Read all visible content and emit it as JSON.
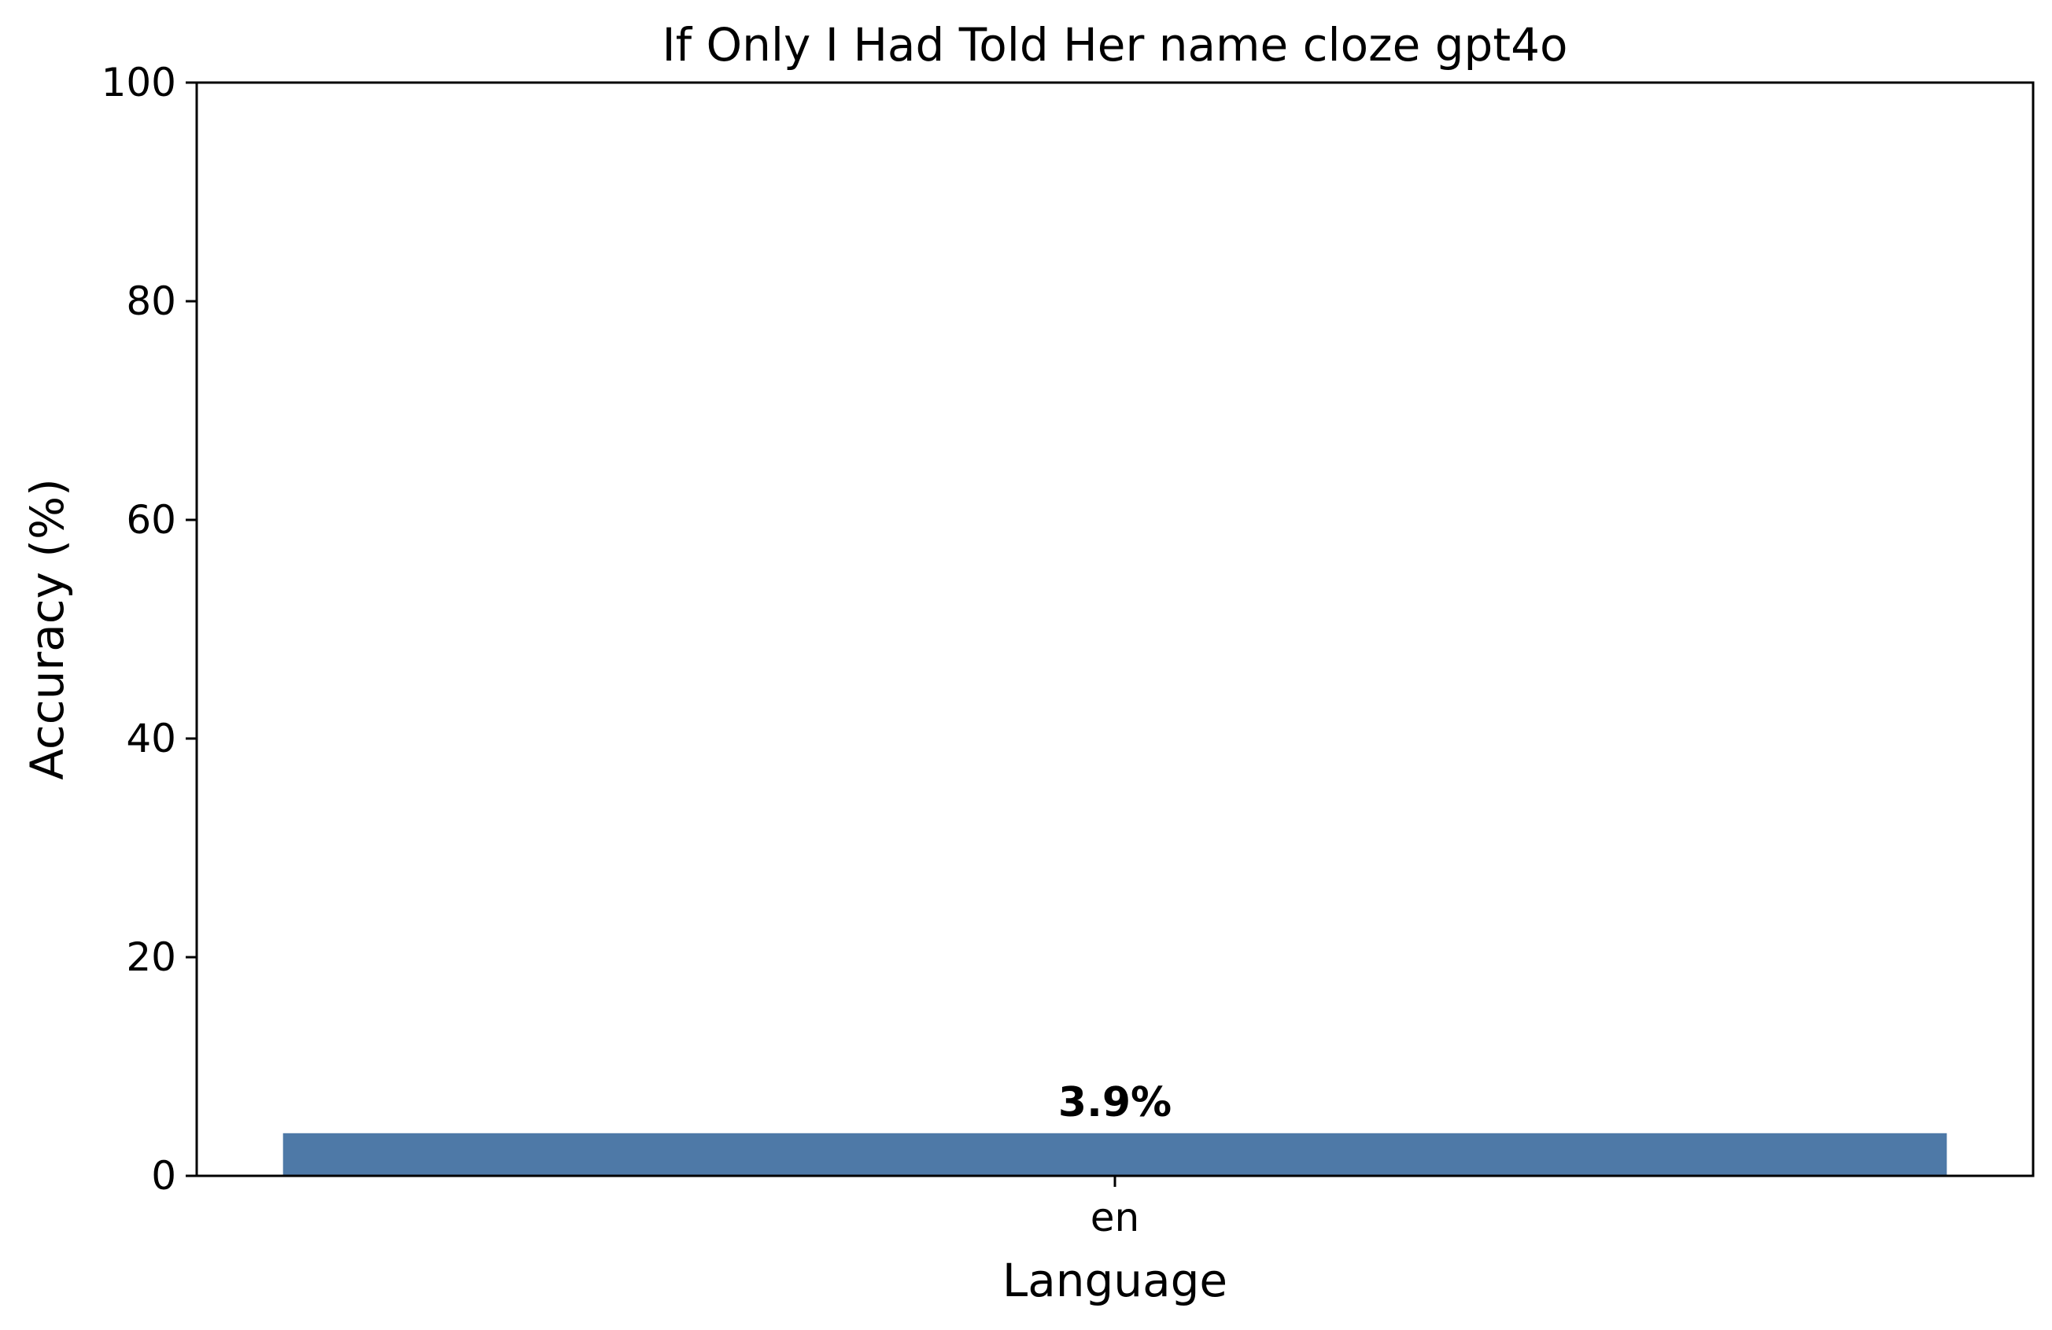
{
  "chart_data": {
    "type": "bar",
    "title": "If Only I Had Told Her name cloze gpt4o",
    "xlabel": "Language",
    "ylabel": "Accuracy (%)",
    "categories": [
      "en"
    ],
    "values": [
      3.9
    ],
    "value_labels": [
      "3.9%"
    ],
    "ylim": [
      0,
      100
    ],
    "yticks": [
      0,
      20,
      40,
      60,
      80,
      100
    ],
    "grid": false,
    "legend": "none",
    "bar_color": "#4e79a7"
  }
}
